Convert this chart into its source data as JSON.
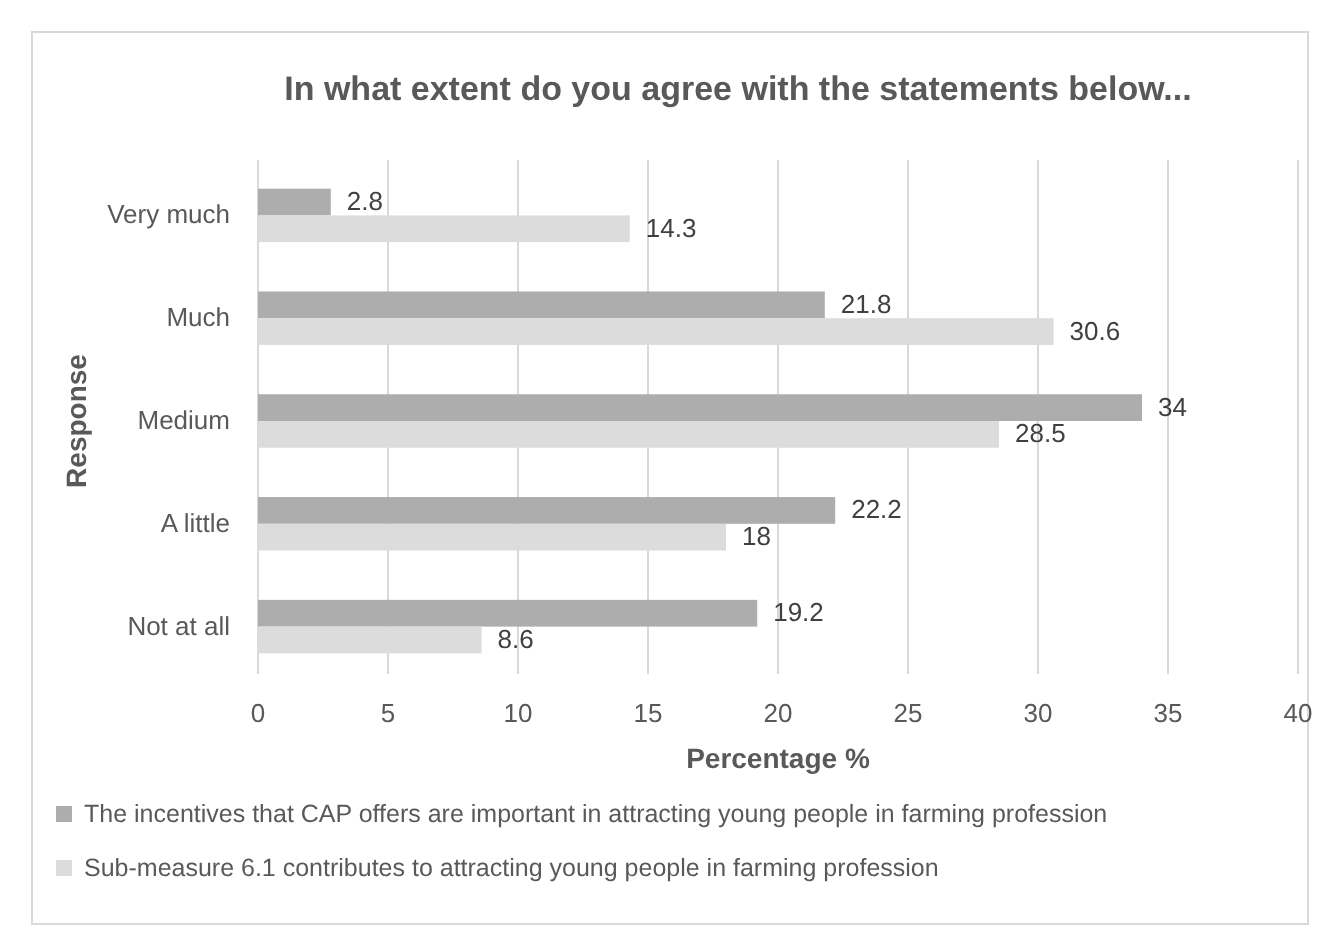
{
  "chart_data": {
    "type": "bar",
    "orientation": "horizontal",
    "title": "In what extent do you agree with the statements below...",
    "xlabel": "Percentage %",
    "ylabel": "Response",
    "categories": [
      "Very much",
      "Much",
      "Medium",
      "A little",
      "Not at all"
    ],
    "series": [
      {
        "name": "The incentives that CAP offers are important in attracting young people in farming profession",
        "color": "#adadad",
        "values": [
          2.8,
          21.8,
          34,
          22.2,
          19.2
        ]
      },
      {
        "name": "Sub-measure 6.1 contributes to attracting young people in farming profession",
        "color": "#dcdcdc",
        "values": [
          14.3,
          30.6,
          28.5,
          18,
          8.6
        ]
      }
    ],
    "xlim": [
      0,
      40
    ],
    "xticks": [
      0,
      5,
      10,
      15,
      20,
      25,
      30,
      35,
      40
    ],
    "grid": "x",
    "legend": "bottom",
    "data_labels": true
  }
}
